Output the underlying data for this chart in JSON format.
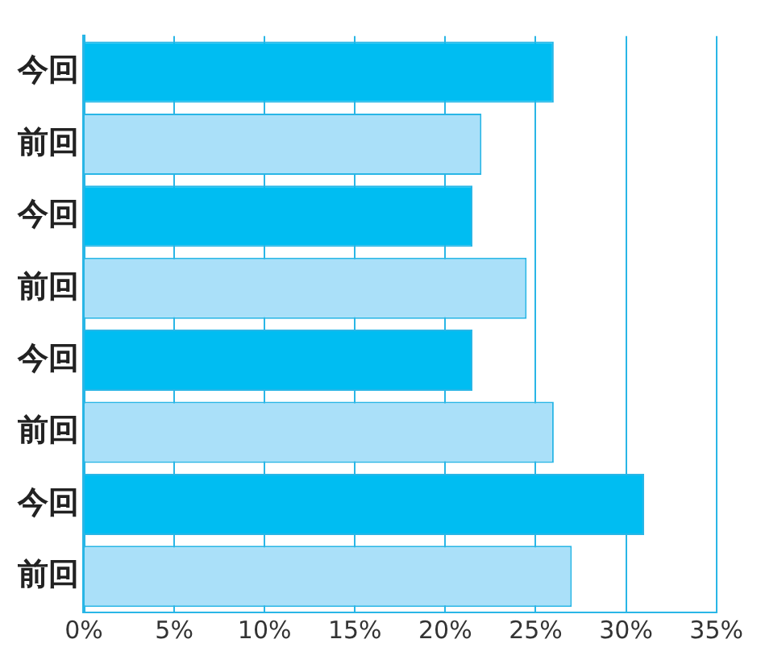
{
  "chart_data": {
    "type": "bar",
    "orientation": "horizontal",
    "categories": [
      "今回",
      "前回",
      "今回",
      "前回",
      "今回",
      "前回",
      "今回",
      "前回"
    ],
    "values": [
      26,
      22,
      21.5,
      24.5,
      21.5,
      26,
      31,
      27
    ],
    "colors": [
      "#00bdf2",
      "#aae0f9",
      "#00bdf2",
      "#aae0f9",
      "#00bdf2",
      "#aae0f9",
      "#00bdf2",
      "#aae0f9"
    ],
    "xlim": [
      0,
      35
    ],
    "xticks": [
      {
        "value": 0,
        "label": "0%"
      },
      {
        "value": 5,
        "label": "5%"
      },
      {
        "value": 10,
        "label": "10%"
      },
      {
        "value": 15,
        "label": "15%"
      },
      {
        "value": 20,
        "label": "20%"
      },
      {
        "value": 25,
        "label": "25%"
      },
      {
        "value": 30,
        "label": "30%"
      },
      {
        "value": 35,
        "label": "35%"
      }
    ],
    "grid": "x"
  }
}
